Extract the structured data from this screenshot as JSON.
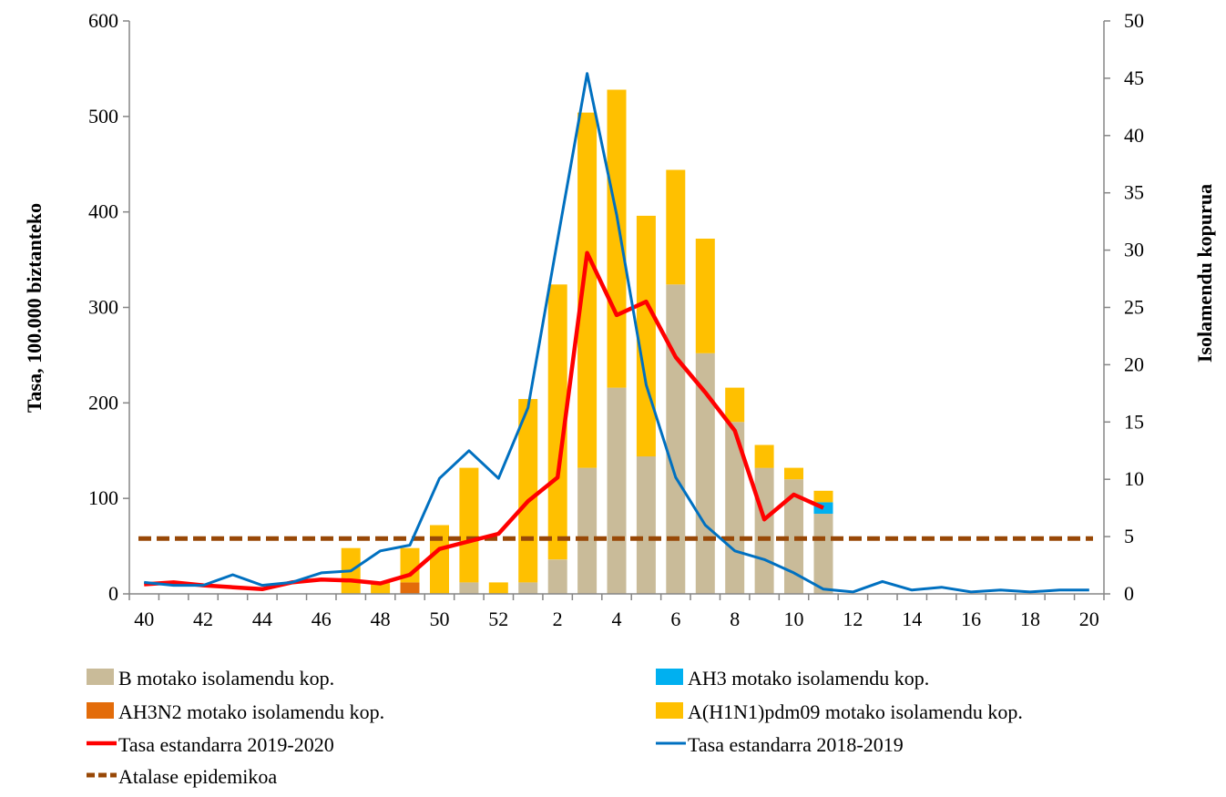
{
  "chart_data": {
    "type": "bar",
    "xlabel": "",
    "ylabel": "Tasa, 100.000 biztanteko",
    "y2label": "Isolamendu kopurua",
    "ylim": [
      0,
      600
    ],
    "y2lim": [
      0,
      50
    ],
    "y_ticks": [
      "0",
      "100",
      "200",
      "300",
      "400",
      "500",
      "600"
    ],
    "y2_ticks": [
      "0",
      "5",
      "10",
      "15",
      "20",
      "25",
      "30",
      "35",
      "40",
      "45",
      "50"
    ],
    "weeks": [
      40,
      41,
      42,
      43,
      44,
      45,
      46,
      47,
      48,
      49,
      50,
      51,
      52,
      1,
      2,
      3,
      4,
      5,
      6,
      7,
      8,
      9,
      10,
      11,
      12,
      13,
      14,
      15,
      16,
      17,
      18,
      19,
      20
    ],
    "x_tick_labels": [
      "40",
      "42",
      "44",
      "46",
      "48",
      "50",
      "52",
      "2",
      "4",
      "6",
      "8",
      "10",
      "12",
      "14",
      "16",
      "18",
      "20"
    ],
    "grid": false,
    "legend_position": "bottom",
    "series": [
      {
        "name": "B motako isolamendu kop.",
        "kind": "bar-stacked",
        "axis": "right",
        "color": "#C9BB99",
        "values": [
          0,
          0,
          0,
          0,
          0,
          0,
          0,
          0,
          0,
          0,
          0,
          1,
          0,
          1,
          3,
          11,
          18,
          12,
          27,
          21,
          15,
          11,
          10,
          7,
          0,
          0,
          0,
          0,
          0,
          0,
          0,
          0,
          0
        ]
      },
      {
        "name": "AH3 motako isolamendu kop.",
        "kind": "bar-stacked",
        "axis": "right",
        "color": "#00B0F0",
        "values": [
          0,
          0,
          0,
          0,
          0,
          0,
          0,
          0,
          0,
          0,
          0,
          0,
          0,
          0,
          0,
          0,
          0,
          0,
          0,
          0,
          0,
          0,
          0,
          1,
          0,
          0,
          0,
          0,
          0,
          0,
          0,
          0,
          0
        ]
      },
      {
        "name": "AH3N2 motako isolamendu kop.",
        "kind": "bar-stacked",
        "axis": "right",
        "color": "#E36C0A",
        "values": [
          0,
          0,
          0,
          0,
          0,
          0,
          0,
          0,
          0,
          1,
          0,
          0,
          0,
          0,
          0,
          0,
          0,
          0,
          0,
          0,
          0,
          0,
          0,
          0,
          0,
          0,
          0,
          0,
          0,
          0,
          0,
          0,
          0
        ]
      },
      {
        "name": "A(H1N1)pdm09  motako isolamendu kop.",
        "kind": "bar-stacked",
        "axis": "right",
        "color": "#FFC000",
        "values": [
          0,
          0,
          0,
          0,
          0,
          0,
          0,
          4,
          1,
          3,
          6,
          10,
          1,
          16,
          24,
          31,
          26,
          21,
          10,
          10,
          3,
          2,
          1,
          1,
          0,
          0,
          0,
          0,
          0,
          0,
          0,
          0,
          0
        ]
      },
      {
        "name": "Tasa estandarra 2019-2020",
        "kind": "line",
        "axis": "left",
        "color": "#FF0000",
        "values": [
          10,
          12,
          9,
          7,
          5,
          12,
          15,
          14,
          11,
          20,
          47,
          55,
          63,
          97,
          122,
          357,
          292,
          306,
          248,
          211,
          171,
          78,
          104,
          90,
          null,
          null,
          null,
          null,
          null,
          null,
          null,
          null,
          null
        ]
      },
      {
        "name": "Tasa estandarra 2018-2019",
        "kind": "line",
        "axis": "left",
        "color": "#0070C0",
        "values": [
          12,
          9,
          9,
          20,
          9,
          12,
          22,
          24,
          45,
          51,
          121,
          150,
          121,
          195,
          371,
          545,
          397,
          219,
          122,
          72,
          45,
          36,
          22,
          5,
          2,
          13,
          4,
          7,
          2,
          4,
          2,
          4,
          4
        ]
      },
      {
        "name": "Atalase epidemikoa",
        "kind": "dashed-line",
        "axis": "left",
        "color": "#984807",
        "values": [
          58,
          58,
          58,
          58,
          58,
          58,
          58,
          58,
          58,
          58,
          58,
          58,
          58,
          58,
          58,
          58,
          58,
          58,
          58,
          58,
          58,
          58,
          58,
          58,
          58,
          58,
          58,
          58,
          58,
          58,
          58,
          58,
          58
        ]
      }
    ]
  }
}
